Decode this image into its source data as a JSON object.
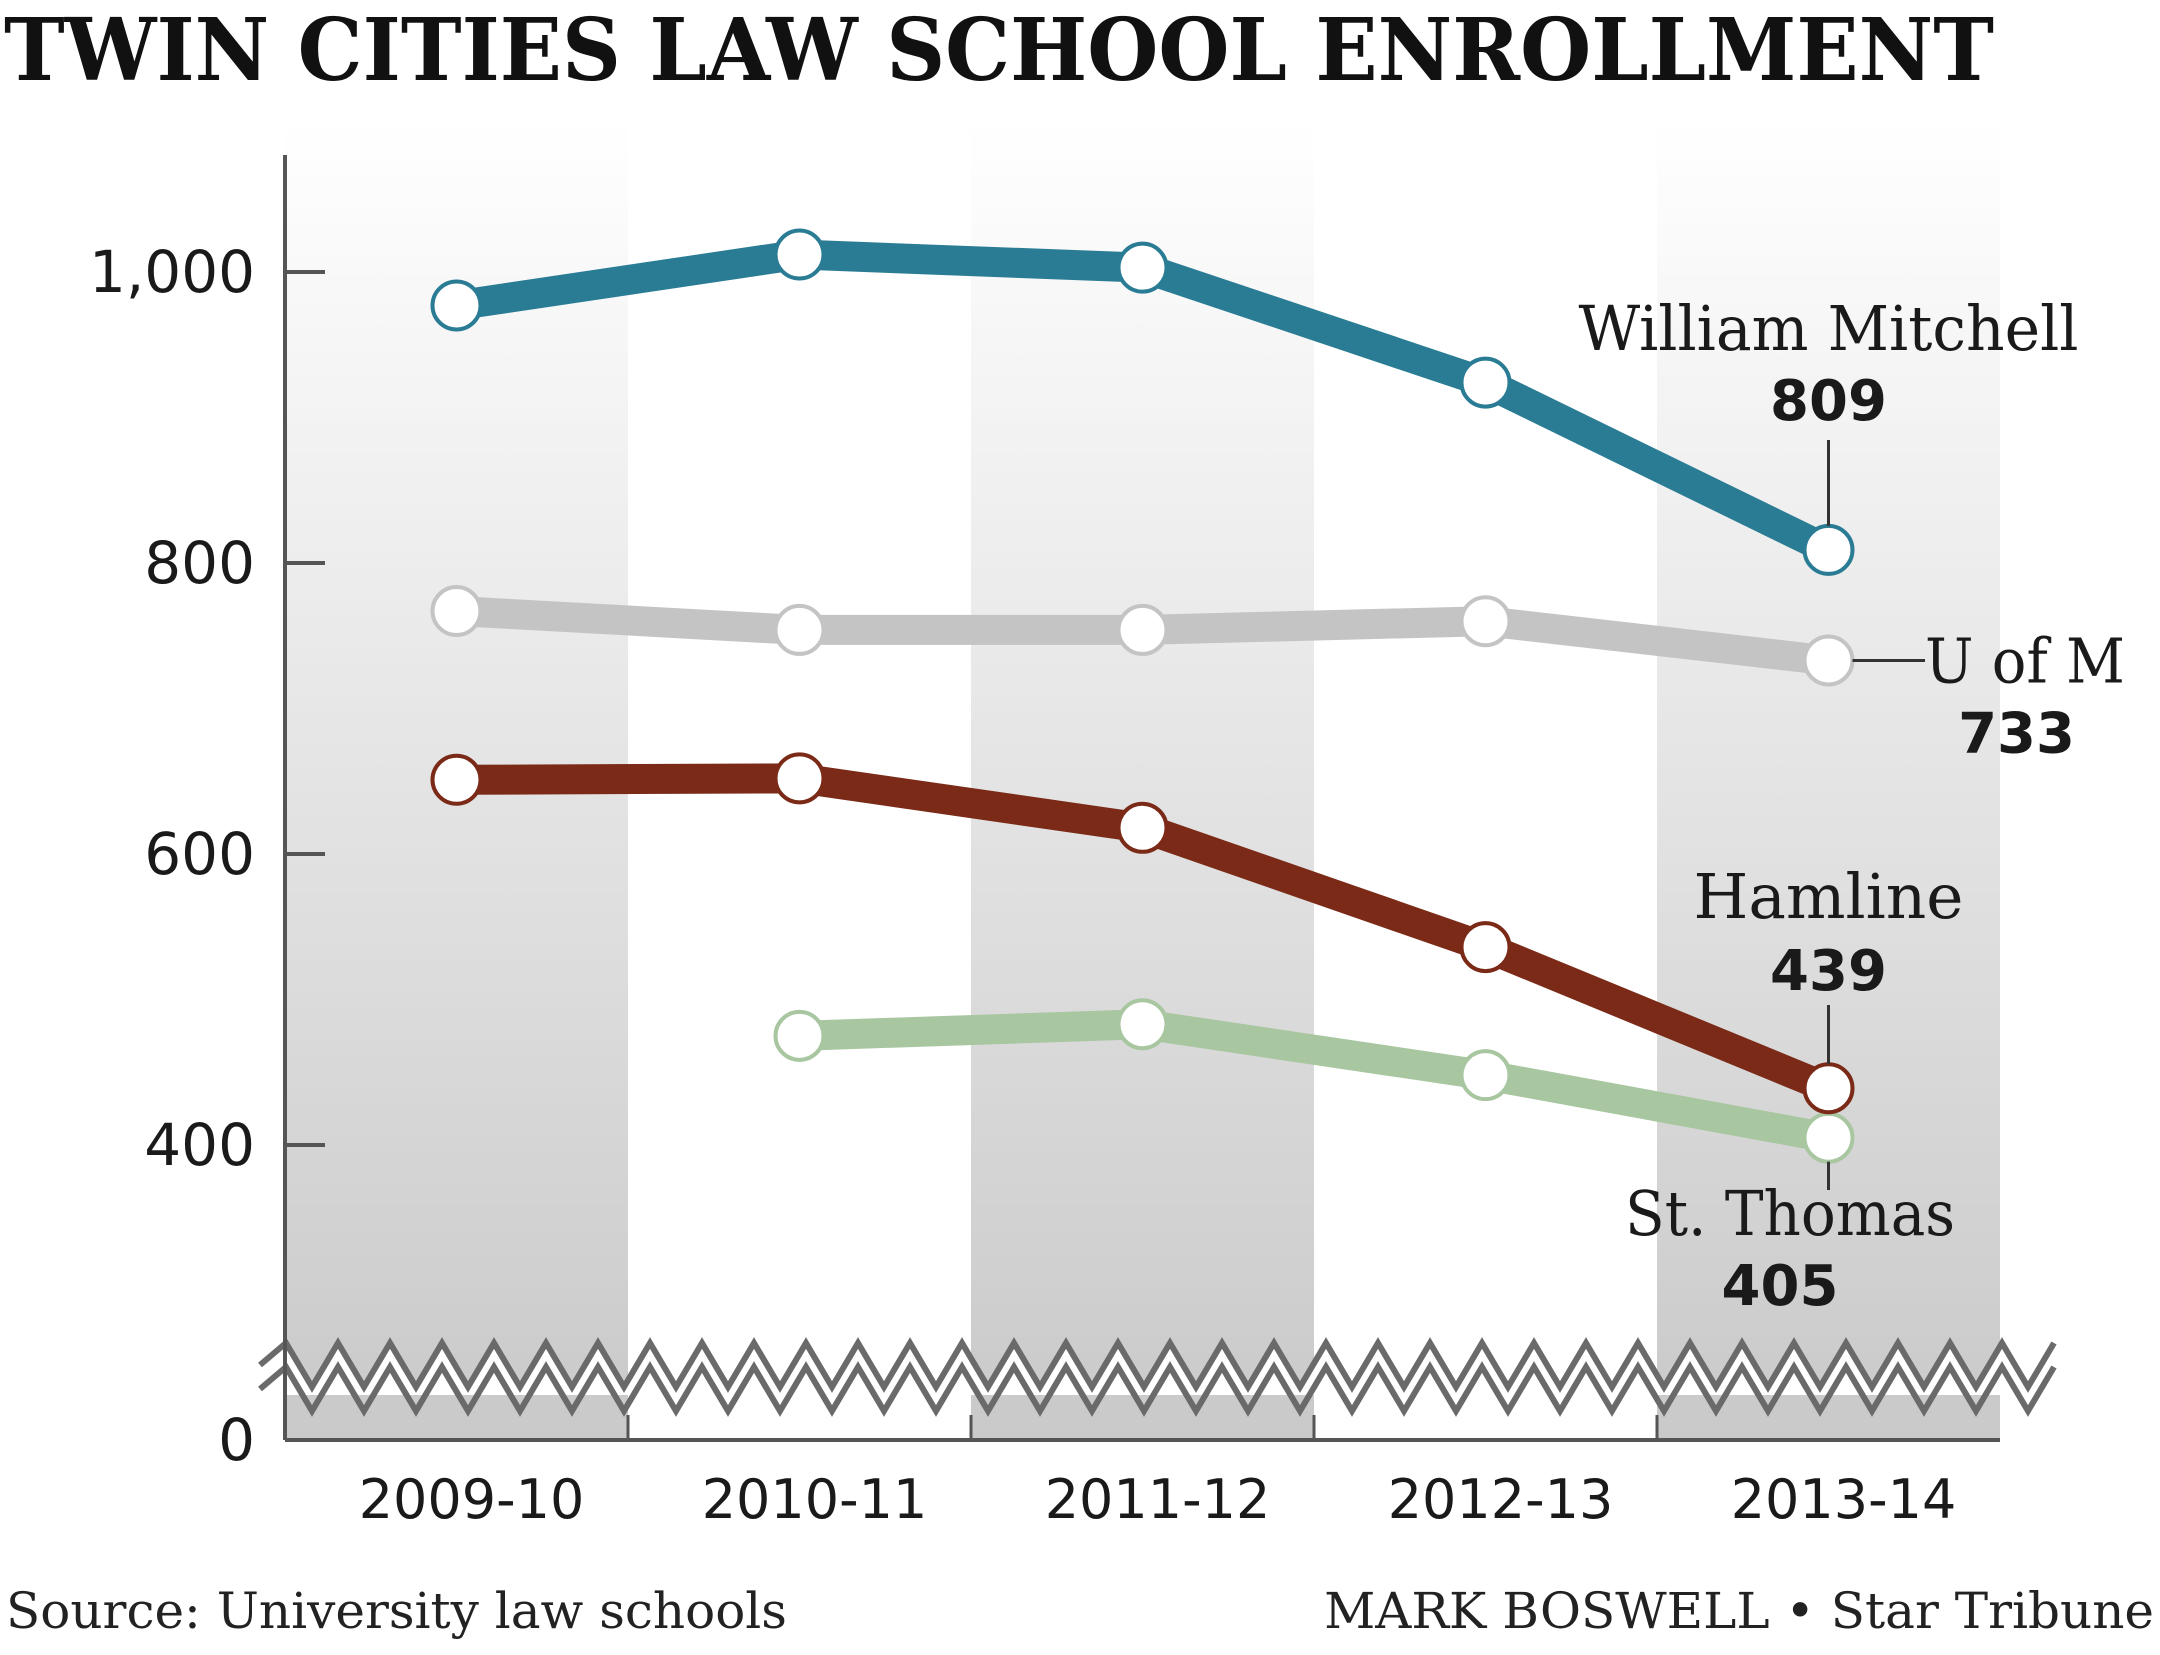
{
  "title": "TWIN CITIES LAW SCHOOL ENROLLMENT",
  "source": "Source: University law schools",
  "credit": "MARK BOSWELL • Star Tribune",
  "colors": {
    "william_mitchell": "#2a7c95",
    "u_of_m": "#c4c4c4",
    "hamline": "#7a2a17",
    "st_thomas": "#a8c6a0",
    "band": "#d6d6d6",
    "axis": "#555555",
    "text": "#1a1a1a"
  },
  "chart_data": {
    "type": "line",
    "categories": [
      "2009-10",
      "2010-11",
      "2011-12",
      "2012-13",
      "2013-14"
    ],
    "yticks": [
      "0",
      "400",
      "600",
      "800",
      "1,000"
    ],
    "ylim": [
      0,
      1080
    ],
    "axis_break": true,
    "grid": false,
    "series": [
      {
        "key": "william_mitchell",
        "name": "William Mitchell",
        "end_label": "809",
        "values": [
          977,
          1012,
          1003,
          924,
          809
        ]
      },
      {
        "key": "u_of_m",
        "name": "U of M",
        "end_label": "733",
        "values": [
          767,
          754,
          754,
          760,
          733
        ]
      },
      {
        "key": "hamline",
        "name": "Hamline",
        "end_label": "439",
        "values": [
          651,
          652,
          618,
          536,
          439
        ]
      },
      {
        "key": "st_thomas",
        "name": "St. Thomas",
        "end_label": "405",
        "values": [
          null,
          475,
          483,
          448,
          405
        ]
      }
    ]
  }
}
